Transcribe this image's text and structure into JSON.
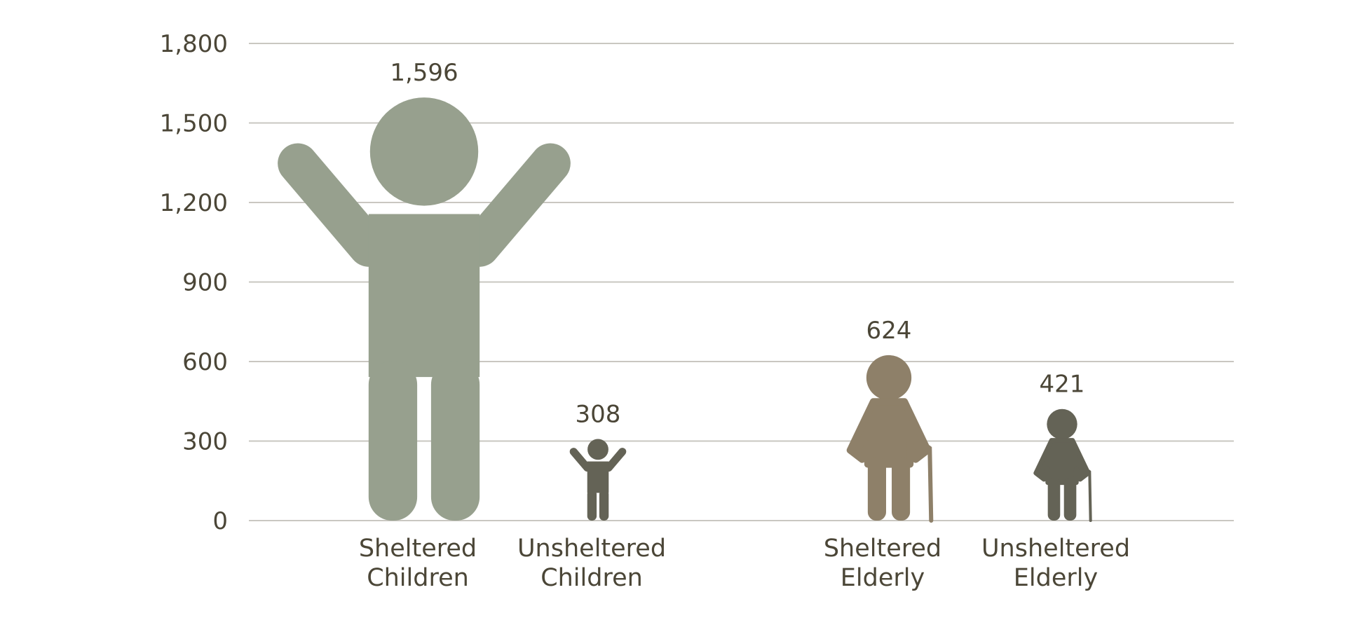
{
  "chart_data": {
    "type": "bar",
    "title": "",
    "xlabel": "",
    "ylabel": "",
    "ylim": [
      0,
      1800
    ],
    "yticks": [
      0,
      300,
      600,
      900,
      1200,
      1500,
      1800
    ],
    "ytick_labels": [
      "0",
      "300",
      "600",
      "900",
      "1,200",
      "1,500",
      "1,800"
    ],
    "grid": true,
    "categories": [
      [
        "Sheltered",
        "Children"
      ],
      [
        "Unsheltered",
        "Children"
      ],
      [
        "Sheltered",
        "Elderly"
      ],
      [
        "Unsheltered",
        "Elderly"
      ]
    ],
    "values": [
      1596,
      308,
      624,
      421
    ],
    "value_labels": [
      "1,596",
      "308",
      "624",
      "421"
    ],
    "icons": [
      "child-icon",
      "child-icon",
      "elderly-with-cane-icon",
      "elderly-with-cane-icon"
    ],
    "colors": [
      "#97a08e",
      "#646356",
      "#8e8069",
      "#646356"
    ]
  }
}
